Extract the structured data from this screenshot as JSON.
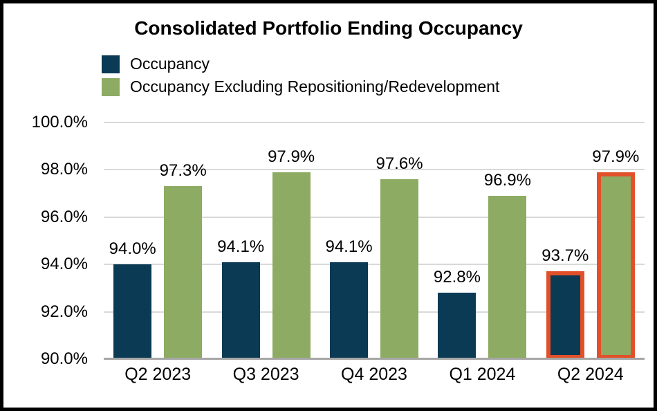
{
  "chart_data": {
    "type": "bar",
    "title": "Consolidated Portfolio Ending Occupancy",
    "categories": [
      "Q2 2023",
      "Q3 2023",
      "Q4 2023",
      "Q1 2024",
      "Q2 2024"
    ],
    "series": [
      {
        "name": "Occupancy",
        "color": "#0b3a54",
        "values": [
          94.0,
          94.1,
          94.1,
          92.8,
          93.7
        ],
        "labels": [
          "94.0%",
          "94.1%",
          "94.1%",
          "92.8%",
          "93.7%"
        ]
      },
      {
        "name": "Occupancy Excluding Repositioning/Redevelopment",
        "color": "#8dab62",
        "values": [
          97.3,
          97.9,
          97.6,
          96.9,
          97.9
        ],
        "labels": [
          "97.3%",
          "97.9%",
          "97.6%",
          "96.9%",
          "97.9%"
        ]
      }
    ],
    "highlighted_category": "Q2 2024",
    "highlight_color": "#e2502a",
    "ylim": [
      90,
      100
    ],
    "yticks": [
      "100.0%",
      "98.0%",
      "96.0%",
      "94.0%",
      "92.0%",
      "90.0%"
    ],
    "ytick_values": [
      100,
      98,
      96,
      94,
      92,
      90
    ],
    "grid": true,
    "gridline_color": "#d9d9d9",
    "axis_line_color": "#a6a6a6",
    "legend_position": "top-left",
    "xlabel": "",
    "ylabel": ""
  }
}
